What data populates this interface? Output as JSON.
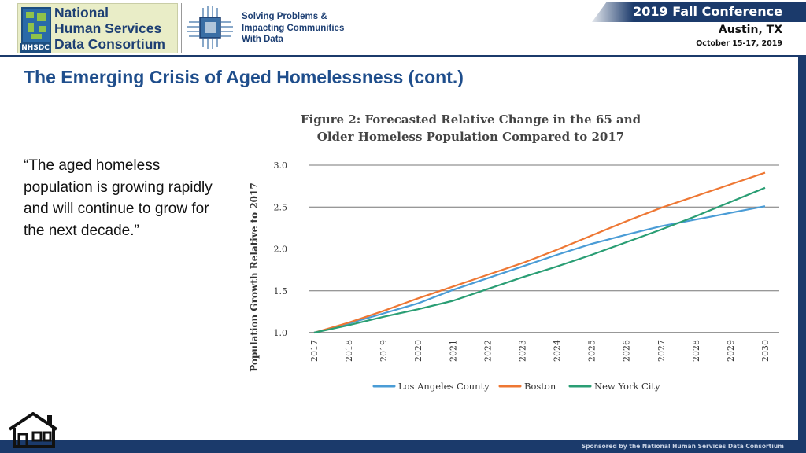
{
  "header": {
    "logo_lines": [
      "National",
      "Human Services",
      "Data Consortium"
    ],
    "logo_badge": "NHSDC",
    "tagline_lines": [
      "Solving Problems &",
      "Impacting Communities",
      "With Data"
    ],
    "conference_title": "2019 Fall Conference",
    "conference_city": "Austin, TX",
    "conference_dates": "October 15-17, 2019"
  },
  "slide": {
    "title": "The Emerging Crisis of Aged Homelessness (cont.)",
    "quote": "“The aged homeless population is growing rapidly and will continue to grow for the next decade.”"
  },
  "footer": {
    "sponsor_text": "Sponsored by the National Human Services Data Consortium"
  },
  "colors": {
    "brand_navy": "#1b3a6b",
    "title_blue": "#1f4e8c",
    "la": "#4a9cd6",
    "boston": "#ee7733",
    "nyc": "#2a9e74"
  },
  "icons": {
    "home": "home-icon",
    "chip": "circuit-chip-icon",
    "map": "us-map-icon"
  },
  "chart_data": {
    "type": "line",
    "title_lines": [
      "Figure 2: Forecasted Relative Change in the 65 and",
      "Older Homeless Population Compared to 2017"
    ],
    "xlabel": "",
    "ylabel": "Population Growth Relative to 2017",
    "x": [
      "2017",
      "2018",
      "2019",
      "2020",
      "2021",
      "2022",
      "2023",
      "2024",
      "2025",
      "2026",
      "2027",
      "2028",
      "2029",
      "2030"
    ],
    "ylim": [
      1.0,
      3.0
    ],
    "yticks": [
      "1.0",
      "1.5",
      "2.0",
      "2.5",
      "3.0"
    ],
    "grid": true,
    "legend_position": "bottom",
    "series": [
      {
        "name": "Los Angeles County",
        "color": "#4a9cd6",
        "values": [
          1.0,
          1.11,
          1.23,
          1.35,
          1.51,
          1.65,
          1.79,
          1.93,
          2.06,
          2.17,
          2.27,
          2.35,
          2.43,
          2.51
        ]
      },
      {
        "name": "Boston",
        "color": "#ee7733",
        "values": [
          1.0,
          1.12,
          1.26,
          1.41,
          1.55,
          1.69,
          1.83,
          1.99,
          2.16,
          2.33,
          2.49,
          2.63,
          2.77,
          2.91
        ]
      },
      {
        "name": "New York City",
        "color": "#2a9e74",
        "values": [
          1.0,
          1.09,
          1.19,
          1.28,
          1.38,
          1.52,
          1.66,
          1.79,
          1.93,
          2.08,
          2.23,
          2.39,
          2.56,
          2.73
        ]
      }
    ]
  }
}
